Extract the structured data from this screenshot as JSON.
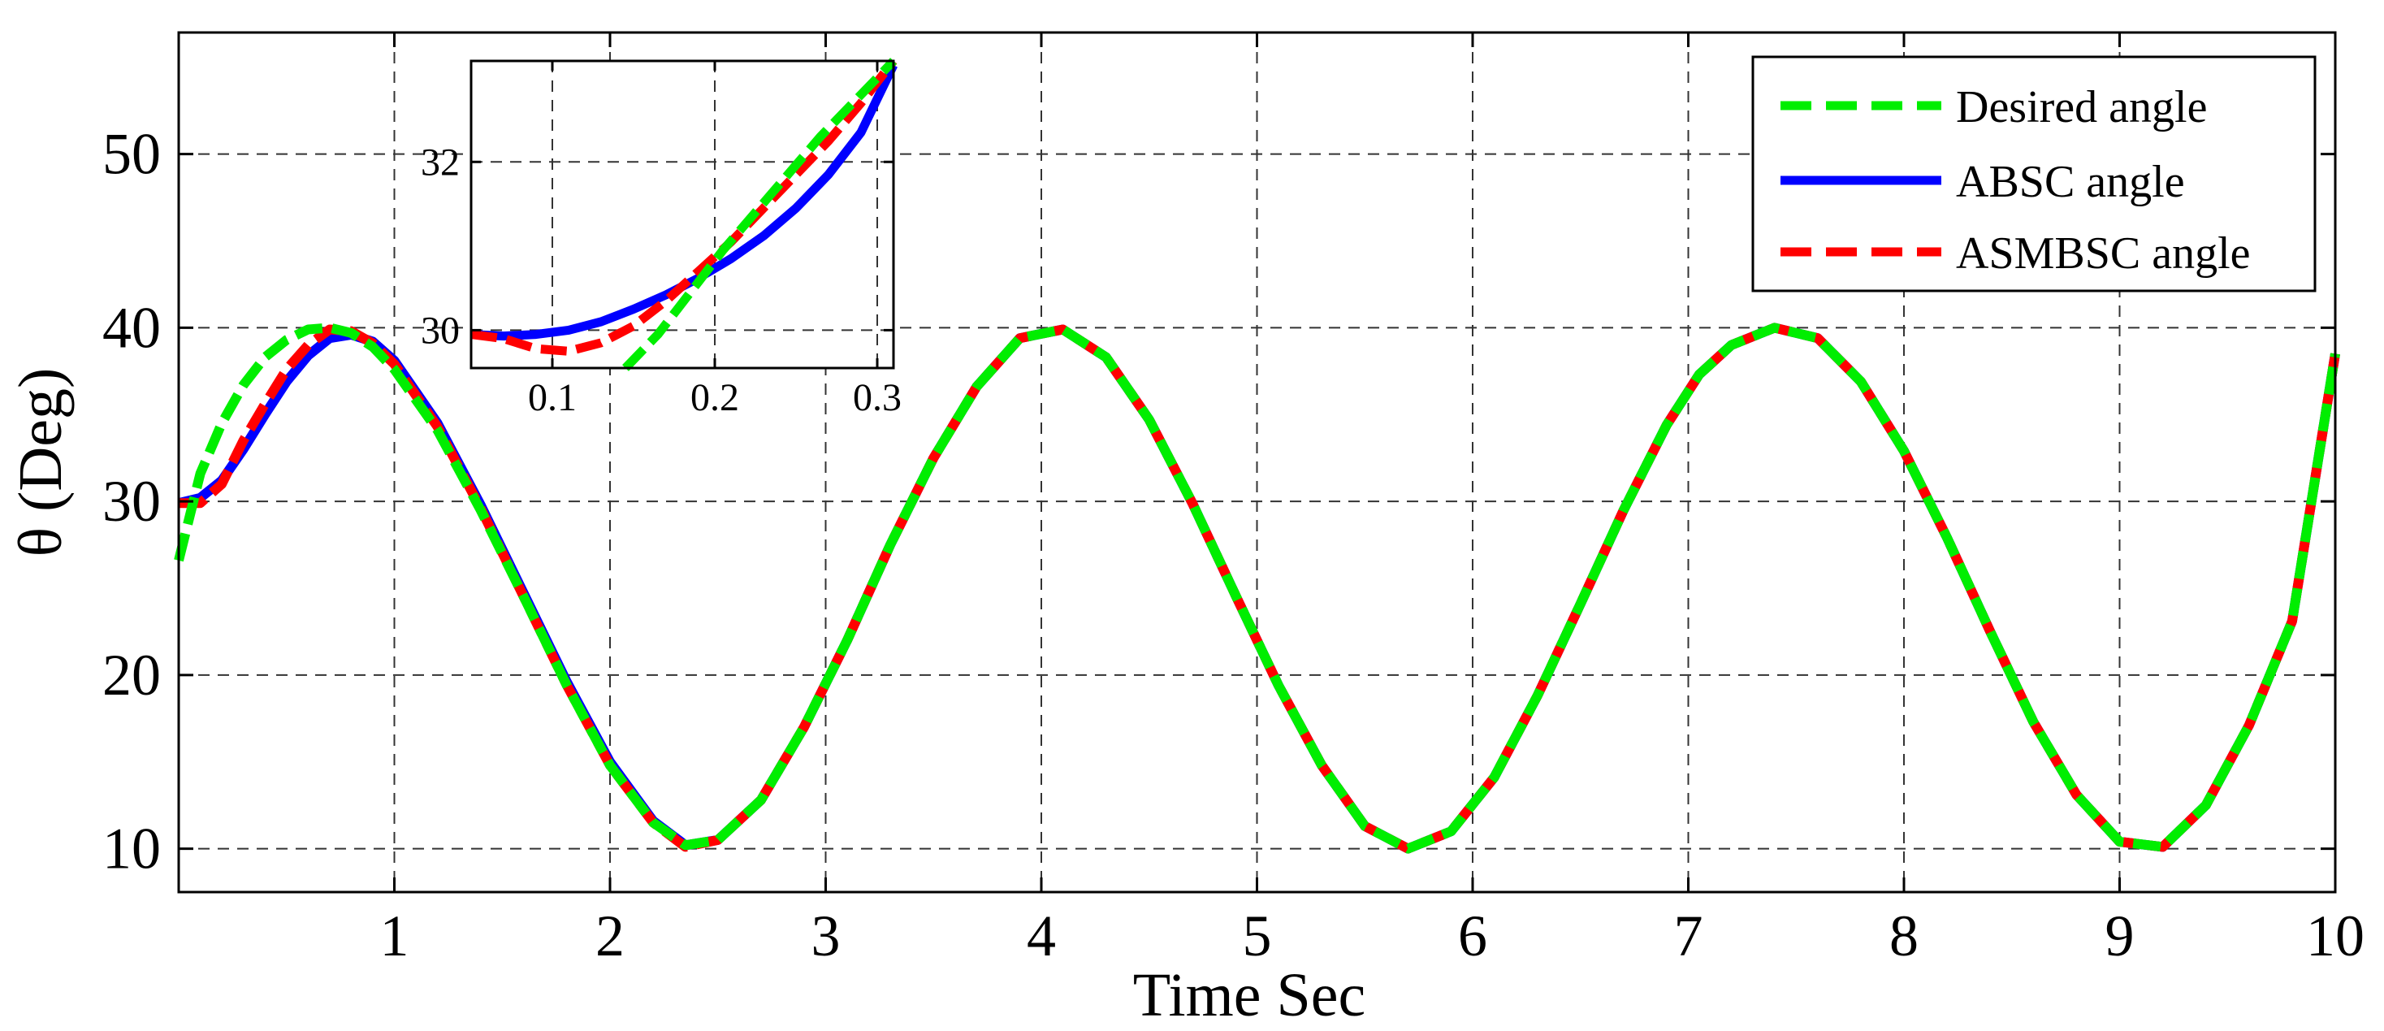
{
  "chart_data": [
    {
      "type": "line",
      "title": "",
      "xlabel": "Time Sec",
      "ylabel": "θ (Deg)",
      "xlim": [
        0,
        10
      ],
      "ylim": [
        7.5,
        57
      ],
      "xticks": [
        1,
        2,
        3,
        4,
        5,
        6,
        7,
        8,
        9,
        10
      ],
      "yticks": [
        10,
        20,
        30,
        40,
        50
      ],
      "grid": true,
      "legend_position": "top-right",
      "series": [
        {
          "name": "Desired angle",
          "color": "#00ee00",
          "style": "dashed",
          "x": [
            0,
            0.1,
            0.2,
            0.3,
            0.4,
            0.5,
            0.6,
            0.7,
            0.8,
            0.9,
            1.0,
            1.2,
            1.4,
            1.6,
            1.8,
            2.0,
            2.2,
            2.35,
            2.5,
            2.7,
            2.9,
            3.1,
            3.3,
            3.5,
            3.7,
            3.9,
            4.1,
            4.3,
            4.5,
            4.7,
            4.9,
            5.1,
            5.3,
            5.5,
            5.7,
            5.9,
            6.1,
            6.3,
            6.5,
            6.7,
            6.9,
            7.05,
            7.2,
            7.4,
            7.6,
            7.8,
            8.0,
            8.2,
            8.4,
            8.6,
            8.8,
            9.0,
            9.2,
            9.4,
            9.6,
            9.8,
            10.0
          ],
          "y": [
            26.6,
            31.6,
            34.5,
            36.7,
            38.3,
            39.3,
            39.9,
            40.0,
            39.7,
            38.9,
            37.6,
            34.1,
            29.5,
            24.5,
            19.4,
            14.8,
            11.5,
            10.2,
            10.5,
            12.8,
            17.0,
            22.0,
            27.5,
            32.5,
            36.6,
            39.4,
            39.9,
            38.3,
            34.7,
            29.9,
            24.6,
            19.4,
            14.8,
            11.3,
            10.0,
            11.0,
            14.1,
            18.8,
            24.1,
            29.5,
            34.4,
            37.3,
            39.0,
            40.0,
            39.4,
            36.9,
            32.9,
            27.9,
            22.5,
            17.3,
            13.1,
            10.4,
            10.1,
            12.5,
            17.1,
            23.1,
            38.5
          ]
        },
        {
          "name": "ABSC angle",
          "color": "#0000ff",
          "style": "solid",
          "x": [
            0,
            0.1,
            0.2,
            0.3,
            0.4,
            0.5,
            0.6,
            0.7,
            0.8,
            0.9,
            1.0,
            1.2,
            1.4,
            1.6,
            1.8,
            2.0,
            2.2,
            2.35,
            2.5,
            2.7,
            2.9,
            3.1,
            3.3,
            3.5,
            3.7,
            3.9,
            4.1,
            4.3,
            4.5,
            4.7,
            4.9,
            5.1,
            5.3,
            5.5,
            5.7,
            5.9,
            6.1,
            6.3,
            6.5,
            6.7,
            6.9,
            7.05,
            7.2,
            7.4,
            7.6,
            7.8,
            8.0,
            8.2,
            8.4,
            8.6,
            8.8,
            9.0,
            9.2,
            9.4,
            9.6,
            9.8,
            10.0
          ],
          "y": [
            29.9,
            30.2,
            31.2,
            33.0,
            35.0,
            36.9,
            38.4,
            39.4,
            39.6,
            39.2,
            38.1,
            34.5,
            29.8,
            24.7,
            19.6,
            15.0,
            11.6,
            10.2,
            10.5,
            12.8,
            17.0,
            22.0,
            27.5,
            32.5,
            36.6,
            39.4,
            39.9,
            38.3,
            34.7,
            29.9,
            24.6,
            19.4,
            14.8,
            11.3,
            10.0,
            11.0,
            14.1,
            18.8,
            24.1,
            29.5,
            34.4,
            37.3,
            39.0,
            40.0,
            39.4,
            36.9,
            32.9,
            27.9,
            22.5,
            17.3,
            13.1,
            10.4,
            10.1,
            12.5,
            17.1,
            23.1,
            38.5
          ]
        },
        {
          "name": "ASMBSC angle",
          "color": "#ff0000",
          "style": "dashed",
          "x": [
            0,
            0.1,
            0.2,
            0.3,
            0.4,
            0.5,
            0.6,
            0.7,
            0.8,
            0.9,
            1.0,
            1.2,
            1.4,
            1.6,
            1.8,
            2.0,
            2.2,
            2.35,
            2.5,
            2.7,
            2.9,
            3.1,
            3.3,
            3.5,
            3.7,
            3.9,
            4.1,
            4.3,
            4.5,
            4.7,
            4.9,
            5.1,
            5.3,
            5.5,
            5.7,
            5.9,
            6.1,
            6.3,
            6.5,
            6.7,
            6.9,
            7.05,
            7.2,
            7.4,
            7.6,
            7.8,
            8.0,
            8.2,
            8.4,
            8.6,
            8.8,
            9.0,
            9.2,
            9.4,
            9.6,
            9.8,
            10.0
          ],
          "y": [
            29.9,
            29.9,
            31.0,
            33.5,
            35.6,
            37.6,
            39.0,
            39.9,
            39.8,
            39.1,
            37.9,
            34.3,
            29.6,
            24.5,
            19.4,
            14.8,
            11.5,
            10.1,
            10.5,
            12.8,
            17.0,
            22.0,
            27.5,
            32.5,
            36.6,
            39.4,
            39.9,
            38.3,
            34.7,
            29.9,
            24.6,
            19.4,
            14.8,
            11.3,
            10.0,
            11.0,
            14.1,
            18.8,
            24.1,
            29.5,
            34.4,
            37.3,
            39.0,
            40.0,
            39.4,
            36.9,
            32.9,
            27.9,
            22.5,
            17.3,
            13.1,
            10.4,
            10.1,
            12.5,
            17.1,
            23.1,
            38.5
          ]
        }
      ]
    },
    {
      "type": "line",
      "title": "",
      "xlabel": "",
      "ylabel": "",
      "xlim": [
        0.05,
        0.31
      ],
      "ylim": [
        29.55,
        33.2
      ],
      "xticks": [
        0.1,
        0.2,
        0.3
      ],
      "xtick_labels": [
        "0.1",
        "0.2",
        "0.3"
      ],
      "yticks": [
        30,
        32
      ],
      "grid": true,
      "series": [
        {
          "name": "Desired angle",
          "color": "#00ee00",
          "style": "dashed",
          "x": [
            0.145,
            0.165,
            0.185,
            0.205,
            0.225,
            0.245,
            0.265,
            0.285,
            0.31
          ],
          "y": [
            29.55,
            29.95,
            30.45,
            30.95,
            31.4,
            31.85,
            32.3,
            32.7,
            33.2
          ]
        },
        {
          "name": "ABSC angle",
          "color": "#0000ff",
          "style": "solid",
          "x": [
            0.05,
            0.07,
            0.09,
            0.11,
            0.13,
            0.15,
            0.17,
            0.19,
            0.21,
            0.23,
            0.25,
            0.27,
            0.29,
            0.31
          ],
          "y": [
            29.95,
            29.93,
            29.95,
            30.0,
            30.1,
            30.25,
            30.42,
            30.62,
            30.85,
            31.12,
            31.45,
            31.85,
            32.35,
            33.15
          ]
        },
        {
          "name": "ASMBSC angle",
          "color": "#ff0000",
          "style": "dashed",
          "x": [
            0.05,
            0.07,
            0.09,
            0.11,
            0.13,
            0.15,
            0.17,
            0.19,
            0.21,
            0.23,
            0.25,
            0.27,
            0.29,
            0.31
          ],
          "y": [
            29.95,
            29.9,
            29.78,
            29.75,
            29.85,
            30.05,
            30.35,
            30.7,
            31.05,
            31.45,
            31.85,
            32.25,
            32.7,
            33.2
          ]
        }
      ]
    }
  ]
}
